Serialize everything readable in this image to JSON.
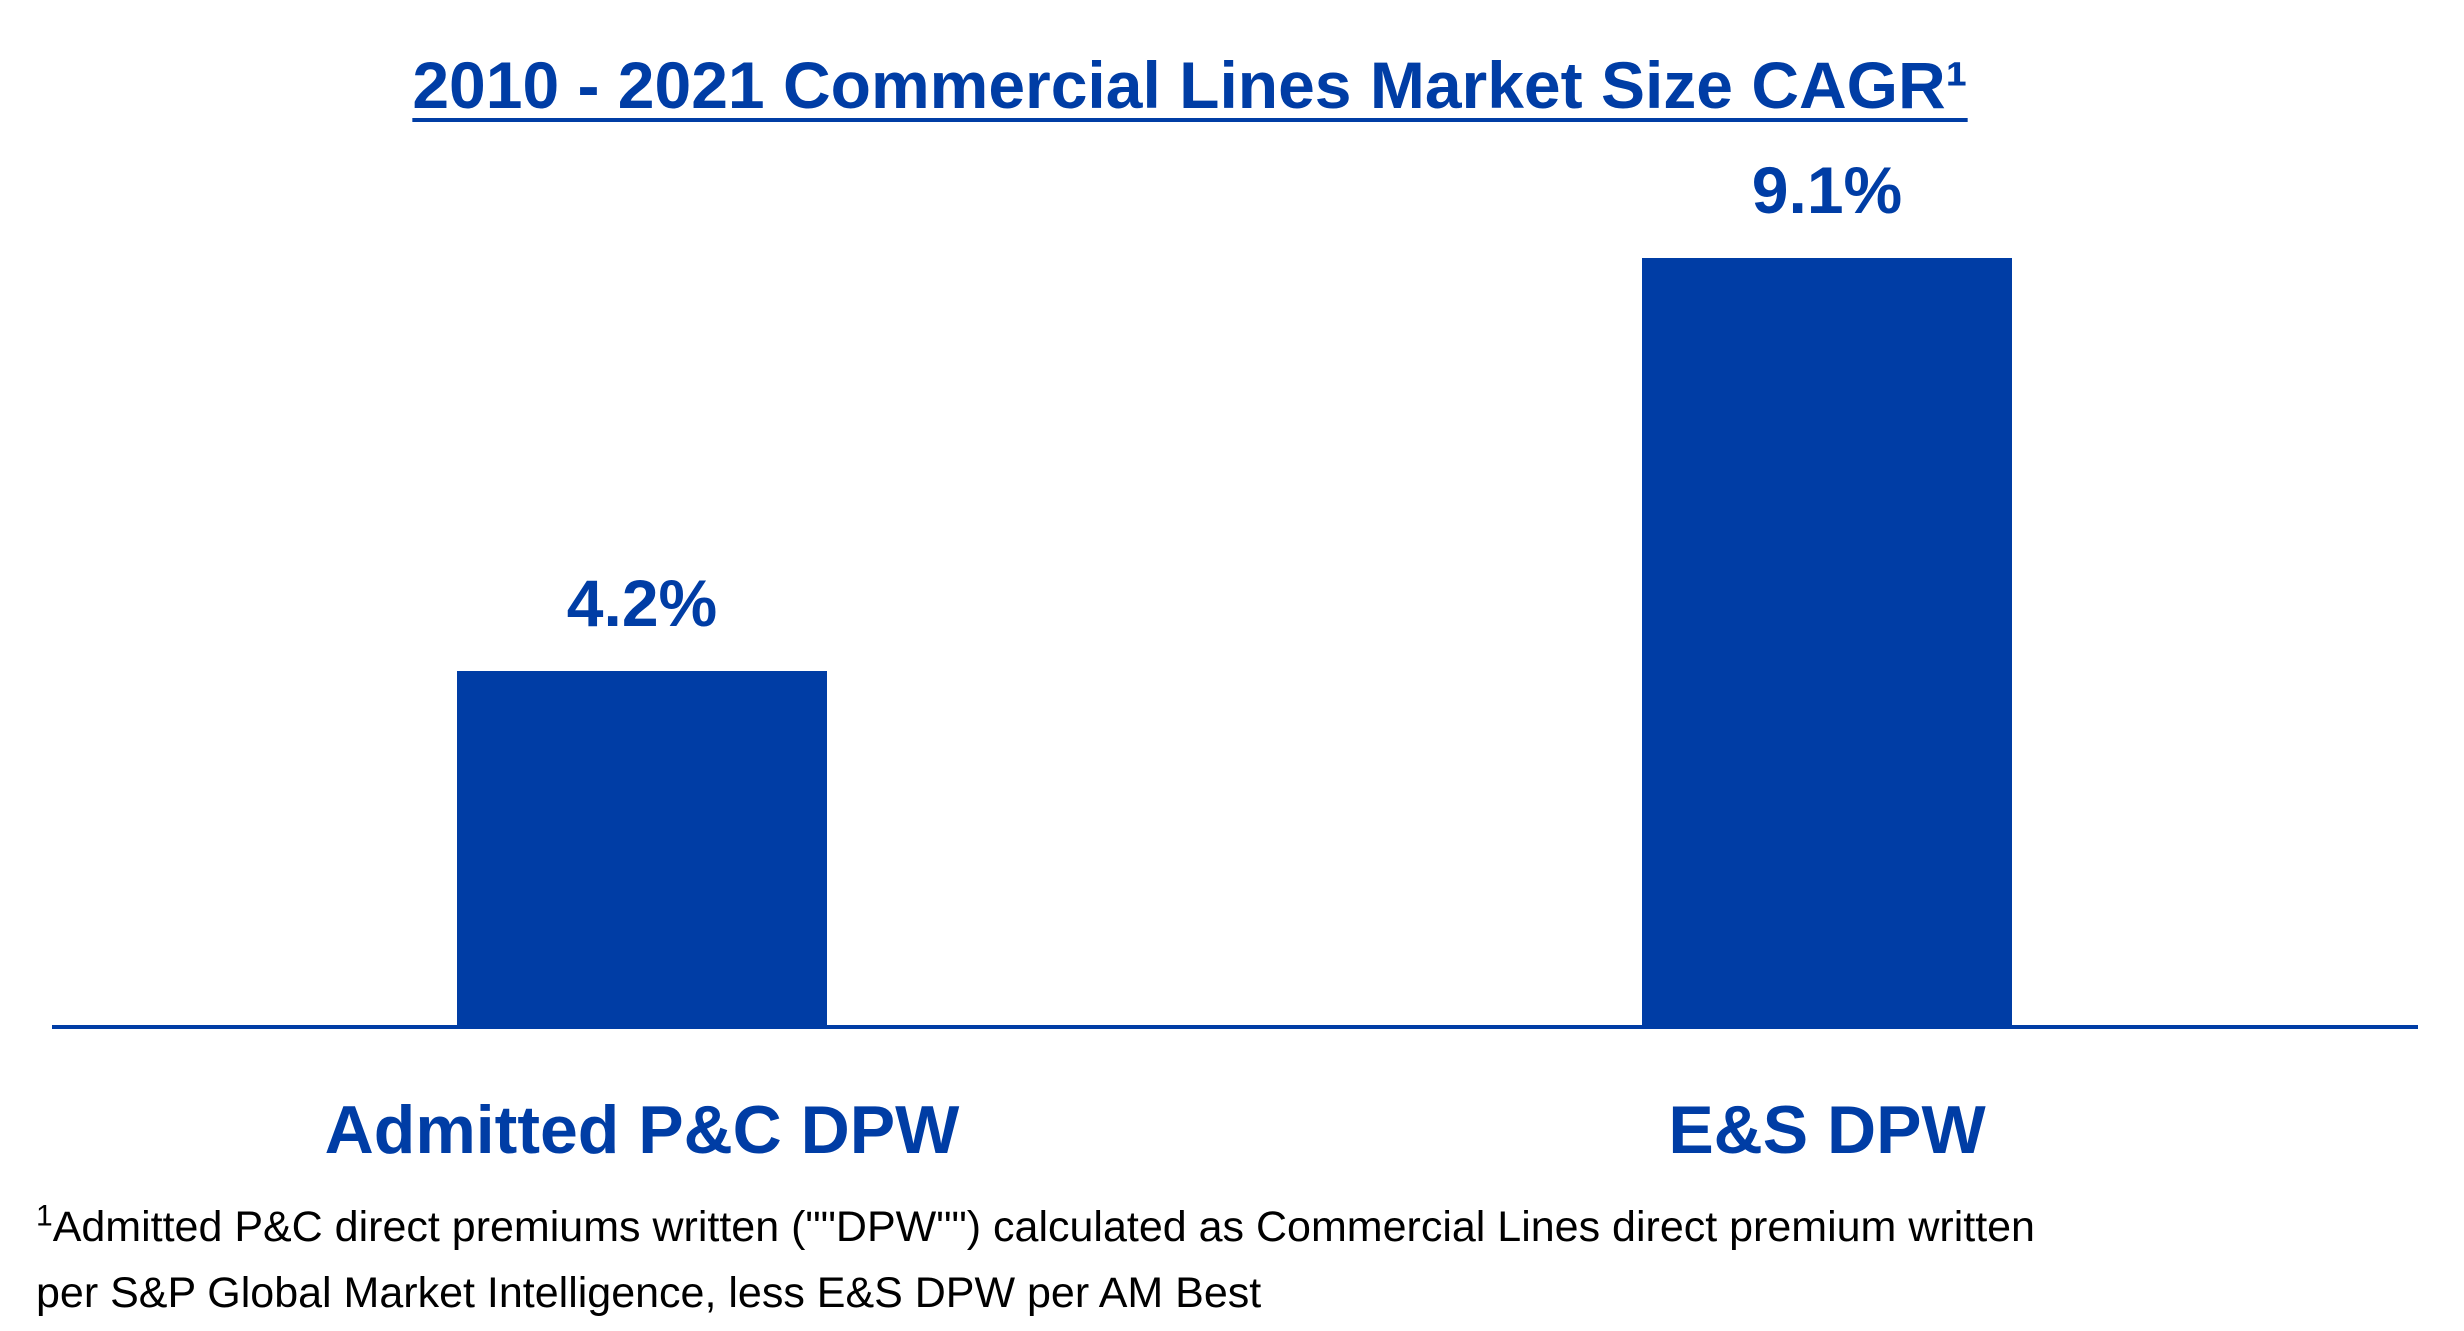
{
  "colors": {
    "accent": "#003DA5",
    "text": "#000000",
    "background": "#FFFFFF"
  },
  "chart_data": {
    "type": "bar",
    "title": "2010 - 2021 Commercial Lines Market Size CAGR¹",
    "categories": [
      "Admitted P&C DPW",
      "E&S DPW"
    ],
    "values": [
      4.2,
      9.1
    ],
    "value_labels": [
      "4.2%",
      "9.1%"
    ],
    "xlabel": "",
    "ylabel": "",
    "ylim": [
      0,
      10
    ],
    "grid": false,
    "legend": "none"
  },
  "footnote": {
    "marker": "1",
    "line1": "Admitted P&C direct premiums written (\"\"DPW\"\") calculated as Commercial Lines direct premium written",
    "line2": "per S&P Global Market Intelligence, less E&S DPW per AM Best"
  }
}
